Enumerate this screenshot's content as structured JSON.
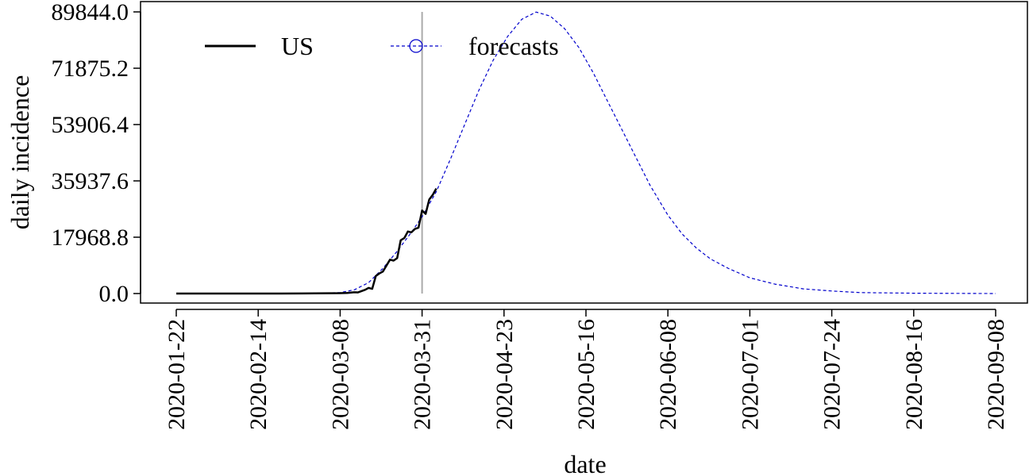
{
  "chart_data": {
    "type": "line",
    "title": "",
    "xlabel": "date",
    "ylabel": "daily incidence",
    "x_type": "date",
    "xlim": [
      "2020-01-22",
      "2020-09-08"
    ],
    "ylim": [
      0,
      89844
    ],
    "x_ticks": [
      "2020-01-22",
      "2020-02-14",
      "2020-03-08",
      "2020-03-31",
      "2020-04-23",
      "2020-05-16",
      "2020-06-08",
      "2020-07-01",
      "2020-07-24",
      "2020-08-16",
      "2020-09-08"
    ],
    "y_ticks": [
      "0.0",
      "17968.8",
      "35937.6",
      "53906.4",
      "71875.2",
      "89844.0"
    ],
    "y_tick_values": [
      0,
      17968.8,
      35937.6,
      53906.4,
      71875.2,
      89844
    ],
    "grid": false,
    "legend_position": "top-left",
    "vertical_marker": "2020-03-31",
    "series": [
      {
        "name": "US",
        "color": "#000000",
        "style": "solid",
        "x": [
          "2020-01-22",
          "2020-02-01",
          "2020-02-10",
          "2020-02-20",
          "2020-03-01",
          "2020-03-05",
          "2020-03-08",
          "2020-03-10",
          "2020-03-12",
          "2020-03-13",
          "2020-03-15",
          "2020-03-16",
          "2020-03-17",
          "2020-03-18",
          "2020-03-19",
          "2020-03-20",
          "2020-03-21",
          "2020-03-22",
          "2020-03-23",
          "2020-03-24",
          "2020-03-25",
          "2020-03-26",
          "2020-03-27",
          "2020-03-28",
          "2020-03-29",
          "2020-03-30",
          "2020-03-31",
          "2020-04-01",
          "2020-04-02",
          "2020-04-03",
          "2020-04-04"
        ],
        "y": [
          0,
          0,
          0,
          0,
          50,
          100,
          120,
          200,
          400,
          350,
          1200,
          1800,
          1500,
          5600,
          6400,
          7000,
          8900,
          10800,
          10500,
          11300,
          17000,
          17700,
          19800,
          19500,
          20600,
          21000,
          26500,
          25400,
          30000,
          31500,
          33500
        ]
      },
      {
        "name": "forecasts",
        "color": "#0000cc",
        "style": "dashed",
        "marker": "circle",
        "x": [
          "2020-01-22",
          "2020-02-14",
          "2020-03-01",
          "2020-03-08",
          "2020-03-12",
          "2020-03-16",
          "2020-03-20",
          "2020-03-24",
          "2020-03-28",
          "2020-03-31",
          "2020-04-04",
          "2020-04-08",
          "2020-04-12",
          "2020-04-16",
          "2020-04-20",
          "2020-04-24",
          "2020-04-28",
          "2020-05-02",
          "2020-05-06",
          "2020-05-10",
          "2020-05-14",
          "2020-05-18",
          "2020-05-22",
          "2020-05-26",
          "2020-05-30",
          "2020-06-03",
          "2020-06-08",
          "2020-06-12",
          "2020-06-16",
          "2020-06-20",
          "2020-06-25",
          "2020-07-01",
          "2020-07-08",
          "2020-07-16",
          "2020-07-24",
          "2020-08-01",
          "2020-08-16",
          "2020-09-08"
        ],
        "y": [
          0,
          0,
          50,
          300,
          1200,
          3500,
          8000,
          13500,
          19500,
          24500,
          32500,
          43000,
          54000,
          65000,
          74500,
          82000,
          87500,
          89800,
          88500,
          84500,
          78500,
          70500,
          61500,
          52500,
          43500,
          34500,
          25000,
          19000,
          14500,
          11000,
          8000,
          5000,
          3000,
          1500,
          800,
          300,
          100,
          0
        ]
      }
    ]
  }
}
